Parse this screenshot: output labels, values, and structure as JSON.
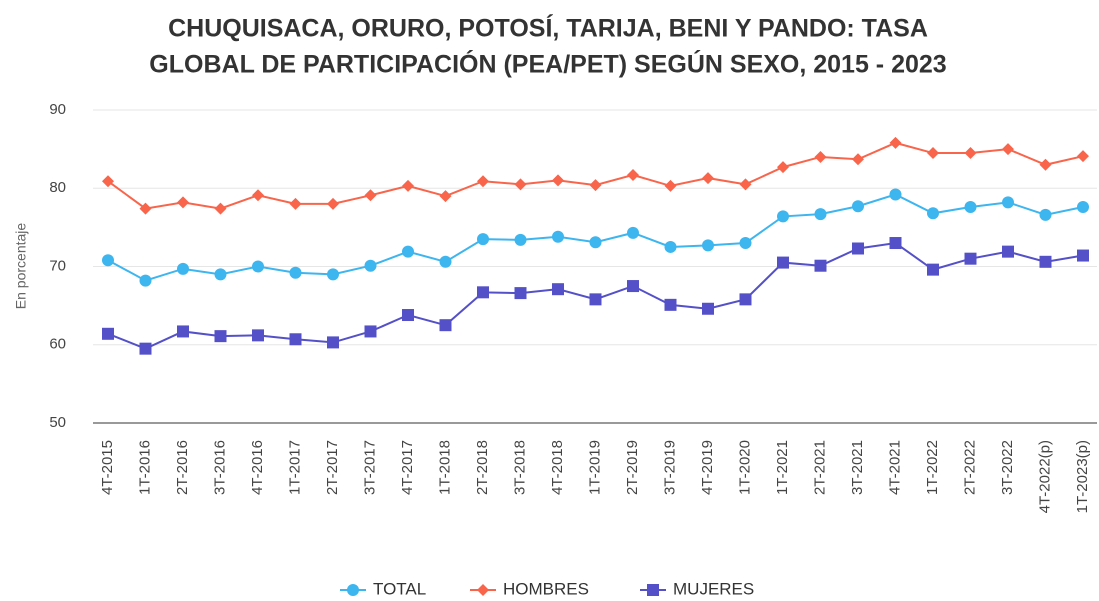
{
  "chart_data": {
    "type": "line",
    "title": [
      "CHUQUISACA, ORURO, POTOSÍ, TARIJA, BENI Y PANDO: TASA",
      "GLOBAL DE PARTICIPACIÓN (PEA/PET) SEGÚN SEXO, 2015 - 2023"
    ],
    "y_label": "En porcentaje",
    "categories": [
      "4T-2015",
      "1T-2016",
      "2T-2016",
      "3T-2016",
      "4T-2016",
      "1T-2017",
      "2T-2017",
      "3T-2017",
      "4T-2017",
      "1T-2018",
      "2T-2018",
      "3T-2018",
      "4T-2018",
      "1T-2019",
      "2T-2019",
      "3T-2019",
      "4T-2019",
      "1T-2020",
      "1T-2021",
      "2T-2021",
      "3T-2021",
      "4T-2021",
      "1T-2022",
      "2T-2022",
      "3T-2022",
      "4T-2022(p)",
      "1T-2023(p)"
    ],
    "series": [
      {
        "name": "TOTAL",
        "color": "#3db5ef",
        "marker": "circle",
        "values": [
          70.8,
          68.2,
          69.7,
          69.0,
          70.0,
          69.2,
          69.0,
          70.1,
          71.9,
          70.6,
          73.5,
          73.4,
          73.8,
          73.1,
          74.3,
          72.5,
          72.7,
          73.0,
          76.4,
          76.7,
          77.7,
          79.2,
          76.8,
          77.6,
          78.2,
          76.6,
          77.6
        ]
      },
      {
        "name": "HOMBRES",
        "color": "#f8654b",
        "marker": "diamond",
        "values": [
          80.9,
          77.4,
          78.2,
          77.4,
          79.1,
          78.0,
          78.0,
          79.1,
          80.3,
          79.0,
          80.9,
          80.5,
          81.0,
          80.4,
          81.7,
          80.3,
          81.3,
          80.5,
          82.7,
          84.0,
          83.7,
          85.8,
          84.5,
          84.5,
          85.0,
          83.0,
          84.1
        ]
      },
      {
        "name": "MUJERES",
        "color": "#5450c8",
        "marker": "square",
        "values": [
          61.4,
          59.5,
          61.7,
          61.1,
          61.2,
          60.7,
          60.3,
          61.7,
          63.8,
          62.5,
          66.7,
          66.6,
          67.1,
          65.8,
          67.5,
          65.1,
          64.6,
          65.8,
          70.5,
          70.1,
          72.3,
          73.0,
          69.6,
          71.0,
          71.9,
          70.6,
          71.4
        ]
      }
    ],
    "ylim": [
      50,
      90
    ],
    "yticks": [
      50,
      60,
      70,
      80,
      90
    ],
    "grid": true,
    "legend": "bottom"
  }
}
